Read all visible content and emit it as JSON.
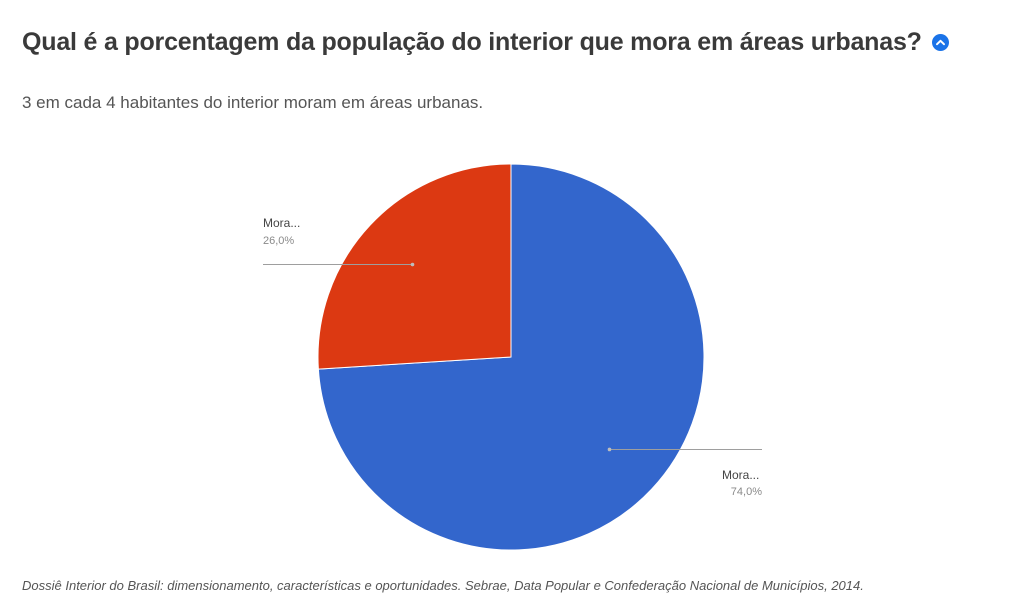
{
  "header": {
    "title": "Qual é a porcentagem da população do interior que mora em áreas urbanas?"
  },
  "subtitle": "3 em cada 4 habitantes do interior moram em áreas urbanas.",
  "source": "Dossiê Interior do Brasil: dimensionamento, características e oportunidades. Sebrae, Data Popular e Confederação Nacional de Municípios, 2014.",
  "icons": {
    "collapse": "chevron-up-icon"
  },
  "chart_data": {
    "type": "pie",
    "title": "",
    "slices": [
      {
        "label": "Mora...",
        "value": 74.0,
        "value_label": "74,0%",
        "color": "#3366cc"
      },
      {
        "label": "Mora...",
        "value": 26.0,
        "value_label": "26,0%",
        "color": "#dc3912"
      }
    ],
    "start_angle_deg": 0,
    "direction": "clockwise",
    "legend": "none"
  }
}
